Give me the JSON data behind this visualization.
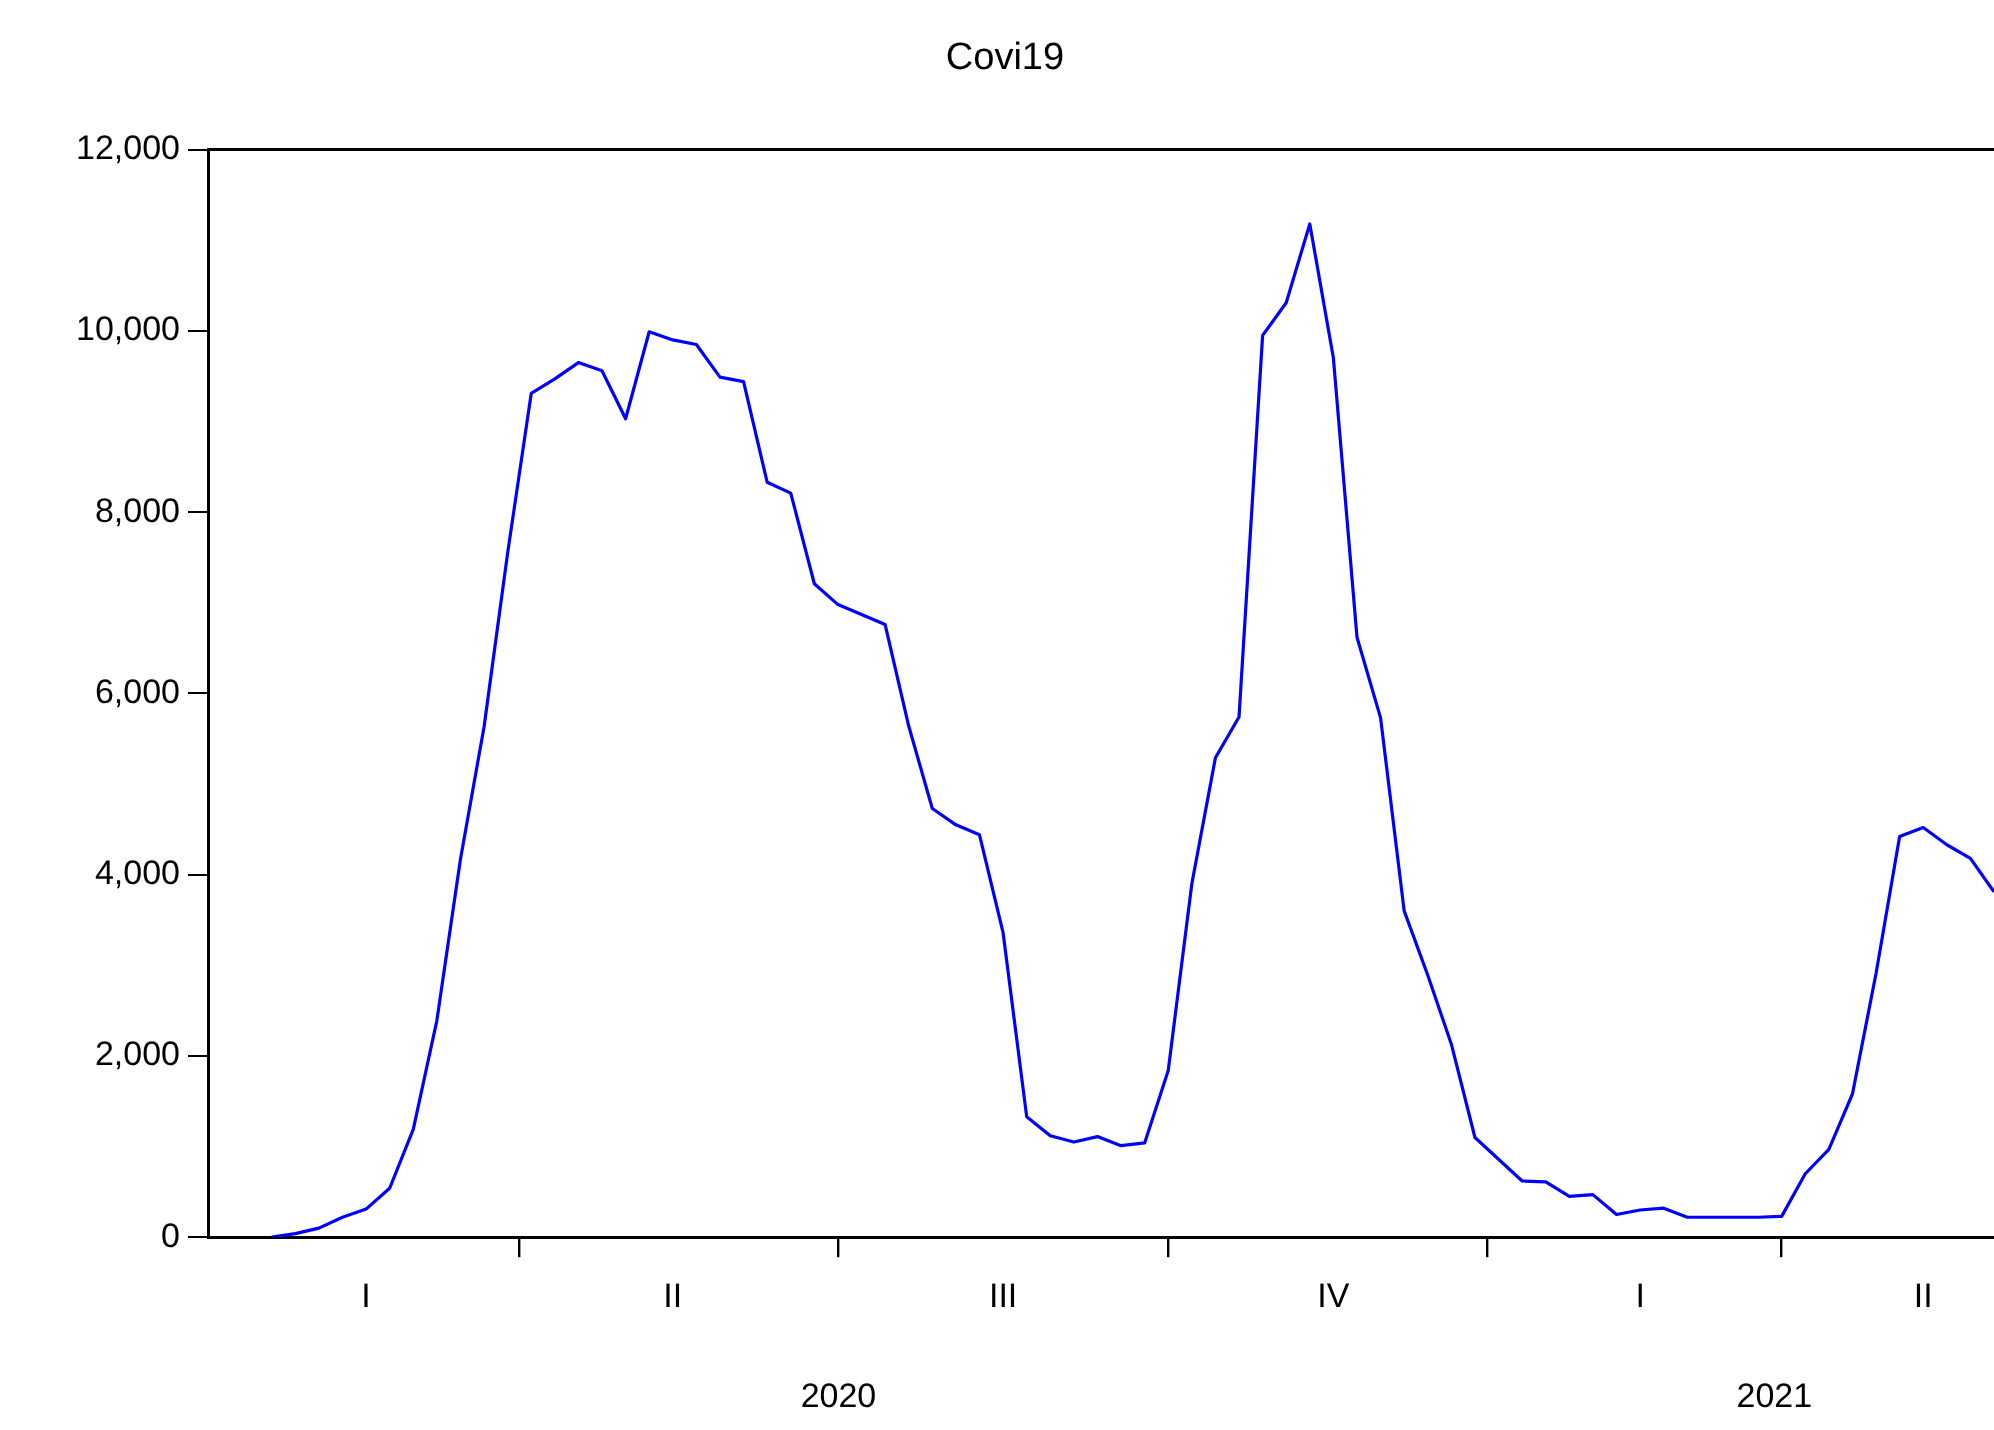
{
  "chart_data": {
    "type": "line",
    "title": "Covi19",
    "categories": [
      null,
      null,
      null,
      null,
      "I",
      null,
      null,
      null,
      null,
      null,
      null,
      null,
      null,
      null,
      null,
      null,
      null,
      "II",
      null,
      null,
      null,
      null,
      null,
      null,
      null,
      null,
      null,
      null,
      null,
      null,
      null,
      "III",
      null,
      null,
      null,
      null,
      null,
      null,
      null,
      null,
      null,
      null,
      null,
      null,
      null,
      "IV",
      null,
      null,
      null,
      null,
      null,
      null,
      null,
      null,
      null,
      null,
      null,
      null,
      "I",
      null,
      null,
      null,
      null,
      null,
      null,
      null,
      null,
      null,
      null,
      null,
      "II",
      null,
      null,
      null
    ],
    "series": [
      {
        "color": "#0000ff",
        "values": [
          0,
          40,
          100,
          220,
          310,
          540,
          1190,
          2390,
          4170,
          5630,
          7550,
          9310,
          9470,
          9650,
          9560,
          9030,
          9990,
          9900,
          9850,
          9490,
          9440,
          8330,
          8210,
          7210,
          6980,
          6870,
          6760,
          5640,
          4730,
          4550,
          4440,
          3360,
          1330,
          1120,
          1050,
          1110,
          1010,
          1040,
          1840,
          3900,
          5290,
          5740,
          9950,
          10310,
          11180,
          9700,
          6620,
          5730,
          3600,
          2890,
          2130,
          1100,
          860,
          620,
          610,
          450,
          470,
          250,
          300,
          320,
          220,
          220,
          220,
          220,
          230,
          700,
          970,
          1580,
          2910,
          4420,
          4520,
          4330,
          4180,
          3810
        ]
      }
    ],
    "annotations": [
      "2020",
      "2021"
    ],
    "ylim": [
      0,
      12000
    ],
    "yticks": [
      {
        "value": 0,
        "label": "0"
      },
      {
        "value": 2000,
        "label": "2,000"
      },
      {
        "value": 4000,
        "label": "4,000"
      },
      {
        "value": 6000,
        "label": "6,000"
      },
      {
        "value": 8000,
        "label": "8,000"
      },
      {
        "value": 10000,
        "label": "10,000"
      },
      {
        "value": 12000,
        "label": "12,000"
      }
    ],
    "grid": false,
    "legend": false,
    "marker": "none",
    "line_style": "solid"
  }
}
